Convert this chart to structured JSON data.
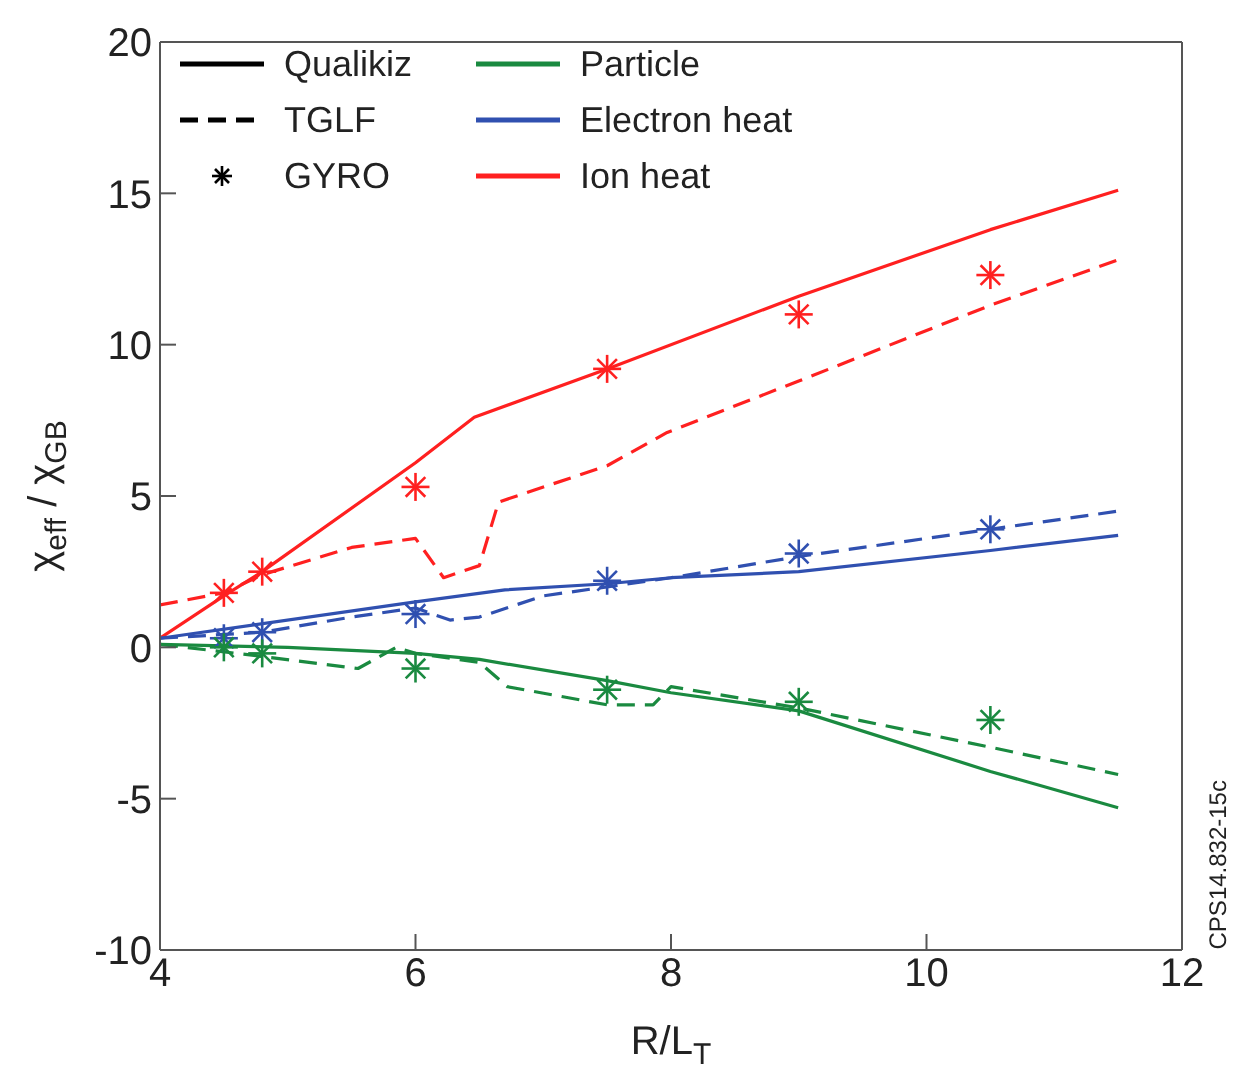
{
  "chart_data": {
    "type": "line",
    "xlabel": "R/L$_{T}$",
    "ylabel": "χ$_{eff}$ / χ$_{GB}$",
    "xlim": [
      4,
      12
    ],
    "xticks": [
      4,
      6,
      8,
      10,
      12
    ],
    "ylim": [
      -10,
      20
    ],
    "yticks": [
      -10,
      -5,
      0,
      5,
      10,
      15,
      20
    ],
    "grid": false,
    "legend": "top left",
    "annotations": [
      "CPS14.832-15c"
    ],
    "series": [
      {
        "color": "#ff2020",
        "line_style": "solid",
        "marker": "none",
        "x": [
          4,
          4.5,
          4.8,
          6,
          6.46,
          7.5,
          9,
          10.5,
          11.5
        ],
        "values": [
          0.3,
          1.7,
          2.5,
          6.1,
          7.6,
          9.2,
          11.6,
          13.8,
          15.1
        ]
      },
      {
        "color": "#ff2020",
        "line_style": "dashed",
        "marker": "none",
        "x": [
          4,
          4.5,
          4.8,
          5.5,
          6,
          6.22,
          6.5,
          6.65,
          7.5,
          7.97,
          9,
          10.5,
          11.5
        ],
        "values": [
          1.4,
          1.8,
          2.4,
          3.3,
          3.6,
          2.3,
          2.7,
          4.8,
          6.0,
          7.1,
          8.8,
          11.3,
          12.8
        ]
      },
      {
        "type": "scatter",
        "color": "#ff2020",
        "marker": "cross",
        "x": [
          4.5,
          4.8,
          6,
          7.5,
          9,
          10.5
        ],
        "values": [
          1.8,
          2.5,
          5.3,
          9.2,
          11.0,
          12.3
        ]
      },
      {
        "color": "#3050b0",
        "line_style": "solid",
        "marker": "none",
        "x": [
          4,
          6,
          6.7,
          7.5,
          8,
          9,
          10.5,
          11.5
        ],
        "values": [
          0.3,
          1.5,
          1.9,
          2.1,
          2.3,
          2.5,
          3.2,
          3.7
        ]
      },
      {
        "color": "#3050b0",
        "line_style": "dashed",
        "marker": "none",
        "x": [
          4,
          4.8,
          5.5,
          6,
          6.27,
          6.5,
          7,
          7.5,
          8,
          9,
          10.5,
          11.5
        ],
        "values": [
          0.3,
          0.5,
          1.0,
          1.3,
          0.9,
          1.0,
          1.7,
          2.0,
          2.3,
          3.0,
          3.9,
          4.5
        ]
      },
      {
        "type": "scatter",
        "color": "#3050b0",
        "marker": "cross",
        "x": [
          4.5,
          4.8,
          6,
          7.5,
          9,
          10.5
        ],
        "values": [
          0.3,
          0.5,
          1.1,
          2.2,
          3.1,
          3.9
        ]
      },
      {
        "color": "#1a8a40",
        "line_style": "solid",
        "marker": "none",
        "x": [
          4,
          5,
          6,
          6.5,
          7.5,
          8,
          9,
          10.5,
          11.5
        ],
        "values": [
          0.1,
          0,
          -0.2,
          -0.4,
          -1.1,
          -1.5,
          -2.1,
          -4.1,
          -5.3
        ]
      },
      {
        "color": "#1a8a40",
        "line_style": "dashed",
        "marker": "none",
        "x": [
          4,
          4.8,
          5.55,
          5.85,
          6,
          6.5,
          6.72,
          7.5,
          7.86,
          8,
          9,
          10.5,
          11.5
        ],
        "values": [
          0.1,
          -0.3,
          -0.7,
          0,
          -0.2,
          -0.5,
          -1.3,
          -1.9,
          -1.9,
          -1.3,
          -2.0,
          -3.3,
          -4.2
        ]
      },
      {
        "type": "scatter",
        "color": "#1a8a40",
        "marker": "cross",
        "x": [
          4.5,
          4.8,
          6,
          7.5,
          9,
          10.5
        ],
        "values": [
          0,
          -0.2,
          -0.7,
          -1.4,
          -1.8,
          -2.4
        ]
      },
      {
        "name": "Qualikiz",
        "color": "#000000",
        "line_style": "solid",
        "marker": "none"
      },
      {
        "name": "TGLF",
        "color": "#000000",
        "line_style": "dashed",
        "marker": "none"
      },
      {
        "name": "GYRO",
        "type": "scatter",
        "color": "#000000",
        "marker": "cross"
      },
      {
        "name": "Particle",
        "color": "#1a8a40",
        "line_style": "solid",
        "marker": "none"
      },
      {
        "name": "Electron heat",
        "color": "#3050b0",
        "line_style": "solid",
        "marker": "none"
      },
      {
        "name": "Ion heat",
        "color": "#ff2020",
        "line_style": "solid",
        "marker": "none"
      }
    ]
  }
}
